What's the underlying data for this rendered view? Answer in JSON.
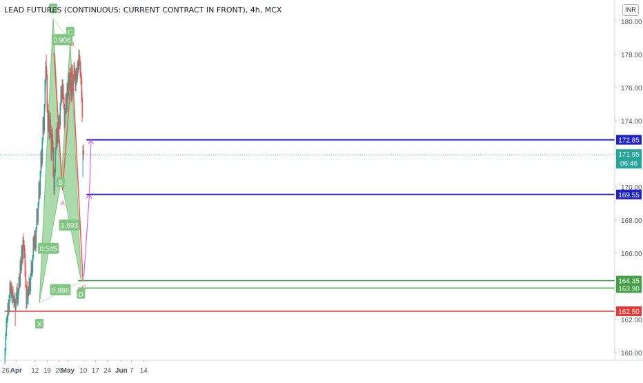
{
  "header": {
    "title": "LEAD FUTURES (CONTINUOUS: CURRENT CONTRACT IN FRONT), 4h, MCX",
    "currency": "INR"
  },
  "colors": {
    "bull": "#26a69a",
    "bear": "#ef5350",
    "pattern_fill": "#66bb6a",
    "pattern_label": "#81c784",
    "support": "#43a047",
    "resistance": "#1e22c9",
    "stop": "#e53935",
    "projection": "#e040fb",
    "current": "#26a69a"
  },
  "chart_data": {
    "type": "candlestick",
    "title": "LEAD FUTURES (CONTINUOUS: CURRENT CONTRACT IN FRONT), 4h, MCX",
    "y_ticks": [
      "180.00",
      "178.00",
      "176.00",
      "174.00",
      "172.00",
      "170.00",
      "168.00",
      "166.00",
      "164.00",
      "162.00",
      "160.00"
    ],
    "ylim": [
      159,
      180.5
    ],
    "x_ticks": [
      {
        "label": "26",
        "day": 26
      },
      {
        "label": "Apr",
        "day": 32
      },
      {
        "label": "12",
        "day": 43
      },
      {
        "label": "19",
        "day": 50
      },
      {
        "label": "26",
        "day": 57
      },
      {
        "label": "May",
        "day": 62
      },
      {
        "label": "10",
        "day": 71
      },
      {
        "label": "17",
        "day": 78
      },
      {
        "label": "24",
        "day": 85
      },
      {
        "label": "Jun",
        "day": 93
      },
      {
        "label": "7",
        "day": 99
      },
      {
        "label": "14",
        "day": 106
      }
    ],
    "candles": [
      [
        25.5,
        159.5,
        160.3,
        159.3,
        160.1
      ],
      [
        25.9,
        160.1,
        161.2,
        159.9,
        161.0
      ],
      [
        26.3,
        161.0,
        162.1,
        160.8,
        161.9
      ],
      [
        26.7,
        161.9,
        162.3,
        161.5,
        162.0
      ],
      [
        27.1,
        162.0,
        163.0,
        161.8,
        162.8
      ],
      [
        27.5,
        162.8,
        163.2,
        162.2,
        162.5
      ],
      [
        27.9,
        162.5,
        163.5,
        162.3,
        163.3
      ],
      [
        28.3,
        163.3,
        164.3,
        163.0,
        164.1
      ],
      [
        28.7,
        164.1,
        164.4,
        163.5,
        163.6
      ],
      [
        29.1,
        163.6,
        164.2,
        163.1,
        164.0
      ],
      [
        29.5,
        164.0,
        164.3,
        163.3,
        163.4
      ],
      [
        29.9,
        163.4,
        163.8,
        162.9,
        163.5
      ],
      [
        30.3,
        163.5,
        164.0,
        163.0,
        163.1
      ],
      [
        30.7,
        163.1,
        163.5,
        162.7,
        163.3
      ],
      [
        31.1,
        163.3,
        163.7,
        162.8,
        162.9
      ],
      [
        31.5,
        162.9,
        163.2,
        161.6,
        162.7
      ],
      [
        31.9,
        162.7,
        163.6,
        162.5,
        163.4
      ],
      [
        32.3,
        163.4,
        164.0,
        163.2,
        163.7
      ],
      [
        32.7,
        163.7,
        164.2,
        162.9,
        163.0
      ],
      [
        33.1,
        163.0,
        163.9,
        162.8,
        163.6
      ],
      [
        33.5,
        163.6,
        164.6,
        163.4,
        164.5
      ],
      [
        33.9,
        164.5,
        164.8,
        163.8,
        164.0
      ],
      [
        34.3,
        164.0,
        165.6,
        163.9,
        165.3
      ],
      [
        34.7,
        165.3,
        165.8,
        164.7,
        165.0
      ],
      [
        35.1,
        165.0,
        166.5,
        164.8,
        166.2
      ],
      [
        35.5,
        166.2,
        166.5,
        165.3,
        165.6
      ],
      [
        35.9,
        165.6,
        167.0,
        165.4,
        166.8
      ],
      [
        36.3,
        166.8,
        167.2,
        166.2,
        166.5
      ],
      [
        36.7,
        166.5,
        166.8,
        165.7,
        166.0
      ],
      [
        37.1,
        166.0,
        166.3,
        164.6,
        164.9
      ],
      [
        37.5,
        164.9,
        165.5,
        163.9,
        164.1
      ],
      [
        37.9,
        164.1,
        164.4,
        162.6,
        162.9
      ],
      [
        38.3,
        162.9,
        163.8,
        162.7,
        163.6
      ],
      [
        38.7,
        163.6,
        164.3,
        163.2,
        163.4
      ],
      [
        39.1,
        163.4,
        164.0,
        162.9,
        163.8
      ],
      [
        39.5,
        163.8,
        164.6,
        163.5,
        164.3
      ],
      [
        39.9,
        164.3,
        164.5,
        163.5,
        163.7
      ],
      [
        40.3,
        163.7,
        164.8,
        163.5,
        164.6
      ],
      [
        40.7,
        164.6,
        165.6,
        164.4,
        165.3
      ],
      [
        41.1,
        165.3,
        165.5,
        164.6,
        164.8
      ],
      [
        41.5,
        164.8,
        165.9,
        164.6,
        165.7
      ],
      [
        41.9,
        165.7,
        167.0,
        165.5,
        166.8
      ],
      [
        42.3,
        166.8,
        167.1,
        166.2,
        166.4
      ],
      [
        42.7,
        166.4,
        167.4,
        166.2,
        167.1
      ],
      [
        43.1,
        167.1,
        167.4,
        166.1,
        166.3
      ],
      [
        43.5,
        166.3,
        167.6,
        166.1,
        167.5
      ],
      [
        43.9,
        167.5,
        168.7,
        167.3,
        168.4
      ],
      [
        44.3,
        168.4,
        168.7,
        167.7,
        167.9
      ],
      [
        44.7,
        167.9,
        169.1,
        167.7,
        168.9
      ],
      [
        45.1,
        168.9,
        170.3,
        168.7,
        170.1
      ],
      [
        45.5,
        170.1,
        170.4,
        169.2,
        169.5
      ],
      [
        45.9,
        169.5,
        171.0,
        169.3,
        170.8
      ],
      [
        46.3,
        170.8,
        172.2,
        170.6,
        172.0
      ],
      [
        46.7,
        172.0,
        172.3,
        171.1,
        171.4
      ],
      [
        47.1,
        171.4,
        173.0,
        171.2,
        172.8
      ],
      [
        47.5,
        172.8,
        174.2,
        172.6,
        174.0
      ],
      [
        47.9,
        174.0,
        174.3,
        173.1,
        173.4
      ],
      [
        48.3,
        173.4,
        175.0,
        173.2,
        174.8
      ],
      [
        48.7,
        174.8,
        176.5,
        174.6,
        176.2
      ],
      [
        49.1,
        176.2,
        177.6,
        175.8,
        177.3
      ],
      [
        49.5,
        177.3,
        178.0,
        176.5,
        176.8
      ],
      [
        49.9,
        176.8,
        177.1,
        174.5,
        175.0
      ],
      [
        50.3,
        175.0,
        175.3,
        173.3,
        173.6
      ],
      [
        50.7,
        173.6,
        174.6,
        173.3,
        174.3
      ],
      [
        51.1,
        174.3,
        174.6,
        172.9,
        173.2
      ],
      [
        51.5,
        173.2,
        174.4,
        172.8,
        174.1
      ],
      [
        51.9,
        174.1,
        174.5,
        173.0,
        173.3
      ],
      [
        52.3,
        173.3,
        173.7,
        171.6,
        171.9
      ],
      [
        52.7,
        171.9,
        173.5,
        171.6,
        173.2
      ],
      [
        53.1,
        173.2,
        173.6,
        172.1,
        172.4
      ],
      [
        53.5,
        172.4,
        172.8,
        170.6,
        170.9
      ],
      [
        53.9,
        170.9,
        171.2,
        169.5,
        169.8
      ],
      [
        54.3,
        169.8,
        171.1,
        169.6,
        170.9
      ],
      [
        54.7,
        170.9,
        172.4,
        170.7,
        172.2
      ],
      [
        55.1,
        172.2,
        173.5,
        172.0,
        173.3
      ],
      [
        55.5,
        173.3,
        173.6,
        172.3,
        172.6
      ],
      [
        55.9,
        172.6,
        173.9,
        172.4,
        173.7
      ],
      [
        56.3,
        173.7,
        174.0,
        172.6,
        172.9
      ],
      [
        56.7,
        172.9,
        174.3,
        172.7,
        174.1
      ],
      [
        57.1,
        174.1,
        174.4,
        173.4,
        173.7
      ],
      [
        57.5,
        173.7,
        175.1,
        173.5,
        174.9
      ],
      [
        57.9,
        174.9,
        176.1,
        174.6,
        175.8
      ],
      [
        58.3,
        175.8,
        176.1,
        175.0,
        175.3
      ],
      [
        58.7,
        175.3,
        176.5,
        175.1,
        176.2
      ],
      [
        59.1,
        176.2,
        176.5,
        175.3,
        175.6
      ],
      [
        59.5,
        175.6,
        176.2,
        174.7,
        175.0
      ],
      [
        59.9,
        175.0,
        175.4,
        173.5,
        173.8
      ],
      [
        60.3,
        173.8,
        174.8,
        173.6,
        174.5
      ],
      [
        60.7,
        174.5,
        175.6,
        174.3,
        175.4
      ],
      [
        61.1,
        175.4,
        175.7,
        174.4,
        174.7
      ],
      [
        61.5,
        174.7,
        176.3,
        174.5,
        176.0
      ],
      [
        61.9,
        176.0,
        176.3,
        175.2,
        175.5
      ],
      [
        62.3,
        175.5,
        176.9,
        175.3,
        176.6
      ],
      [
        62.7,
        176.6,
        176.9,
        175.8,
        176.1
      ],
      [
        63.1,
        176.1,
        177.2,
        175.9,
        176.9
      ],
      [
        63.5,
        176.9,
        177.2,
        176.0,
        176.3
      ],
      [
        63.9,
        176.3,
        176.6,
        175.1,
        175.4
      ],
      [
        64.3,
        175.4,
        176.5,
        175.2,
        176.2
      ],
      [
        64.7,
        176.2,
        177.0,
        175.7,
        176.0
      ],
      [
        65.1,
        176.0,
        176.8,
        175.5,
        176.5
      ],
      [
        65.5,
        176.5,
        177.5,
        176.2,
        177.2
      ],
      [
        65.9,
        177.2,
        177.6,
        176.4,
        176.7
      ],
      [
        66.3,
        176.7,
        177.0,
        175.8,
        176.1
      ],
      [
        66.7,
        176.1,
        177.2,
        175.7,
        176.9
      ],
      [
        67.1,
        176.9,
        177.2,
        176.2,
        176.5
      ],
      [
        67.5,
        176.5,
        177.6,
        176.3,
        177.4
      ],
      [
        67.9,
        177.4,
        177.7,
        176.8,
        177.1
      ],
      [
        68.3,
        177.1,
        178.3,
        176.9,
        178.0
      ],
      [
        68.7,
        178.0,
        178.3,
        177.3,
        177.6
      ],
      [
        69.1,
        177.6,
        177.9,
        176.6,
        176.9
      ],
      [
        69.5,
        176.9,
        177.4,
        176.2,
        176.6
      ],
      [
        69.9,
        176.6,
        176.9,
        175.1,
        175.4
      ],
      [
        70.3,
        175.4,
        175.8,
        173.9,
        174.2
      ]
    ],
    "pattern": {
      "name": "bullish harmonic pattern",
      "points": {
        "X": {
          "day": 45.5,
          "price": 163.0
        },
        "A": {
          "day": 53.5,
          "price": 180.2
        },
        "B": {
          "day": 58.2,
          "price": 170.4
        },
        "C": {
          "day": 63.4,
          "price": 178.8
        },
        "D": {
          "day": 69.8,
          "price": 164.3
        }
      },
      "ratios": [
        {
          "label": "0.545",
          "day": 50.7,
          "price": 166.3
        },
        {
          "label": "0.906",
          "day": 58.7,
          "price": 178.9
        },
        {
          "label": "1.693",
          "day": 62.9,
          "price": 167.7
        },
        {
          "label": "0.888",
          "day": 57.7,
          "price": 163.8
        }
      ],
      "letters": [
        "X",
        "A",
        "B",
        "C",
        "D"
      ]
    },
    "levels": [
      {
        "label": "172.85",
        "price": 172.85,
        "style": "resistance",
        "from_day": 72.8
      },
      {
        "label": "169.55",
        "price": 169.55,
        "style": "resistance",
        "from_day": 72.8
      },
      {
        "label": "164.35",
        "price": 164.35,
        "style": "support",
        "from_day": 68.0
      },
      {
        "label": "163.90",
        "price": 163.9,
        "style": "support",
        "from_day": 68.0
      },
      {
        "label": "162.50",
        "price": 162.5,
        "style": "stop",
        "from_day": 25.5
      }
    ],
    "current_price": {
      "label": "171.95",
      "price": 171.95,
      "countdown": "06:46"
    },
    "projections": [
      {
        "from_day": 71.3,
        "from_price": 164.6,
        "to_day": 74.5,
        "to_price": 169.55
      },
      {
        "from_day": 74.5,
        "from_price": 169.55,
        "to_day": 75.5,
        "to_price": 172.85
      }
    ]
  }
}
